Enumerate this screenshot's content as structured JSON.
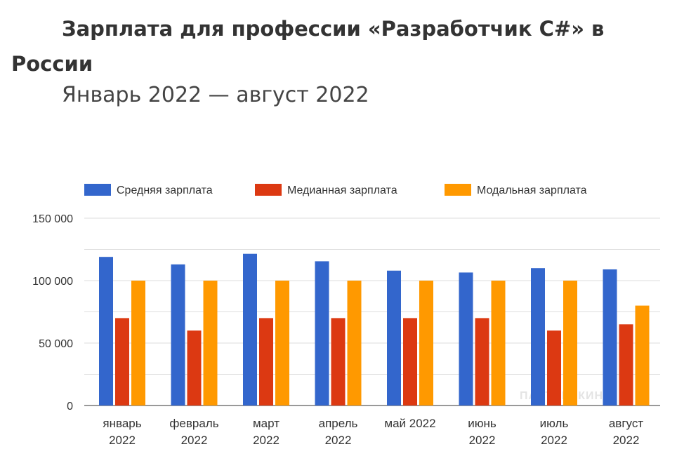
{
  "title_line1": "Зарплата для профессии «Разработчик C#» в",
  "title_line2": "России",
  "subtitle": "Январь 2022 — август 2022",
  "watermark": "ПАРТНЕРКИН",
  "chart_data": {
    "type": "bar",
    "title": "Зарплата для профессии «Разработчик C#» в России",
    "subtitle": "Январь 2022 — август 2022",
    "categories": [
      "январь 2022",
      "февраль 2022",
      "март 2022",
      "апрель 2022",
      "май 2022",
      "июнь 2022",
      "июль 2022",
      "август 2022"
    ],
    "series": [
      {
        "name": "Средняя зарплата",
        "color": "#3366cc",
        "values": [
          119000,
          113000,
          121500,
          115500,
          108000,
          106500,
          110000,
          109000
        ]
      },
      {
        "name": "Медианная зарплата",
        "color": "#dc3912",
        "values": [
          70000,
          60000,
          70000,
          70000,
          70000,
          70000,
          60000,
          65000
        ]
      },
      {
        "name": "Модальная зарплата",
        "color": "#ff9900",
        "values": [
          100000,
          100000,
          100000,
          100000,
          100000,
          100000,
          100000,
          80000
        ]
      }
    ],
    "yticks": [
      "0",
      "50 000",
      "100 000",
      "150 000"
    ],
    "ytick_values": [
      0,
      50000,
      100000,
      150000
    ],
    "ylim": [
      0,
      150000
    ],
    "grid": true,
    "legend": "top"
  }
}
